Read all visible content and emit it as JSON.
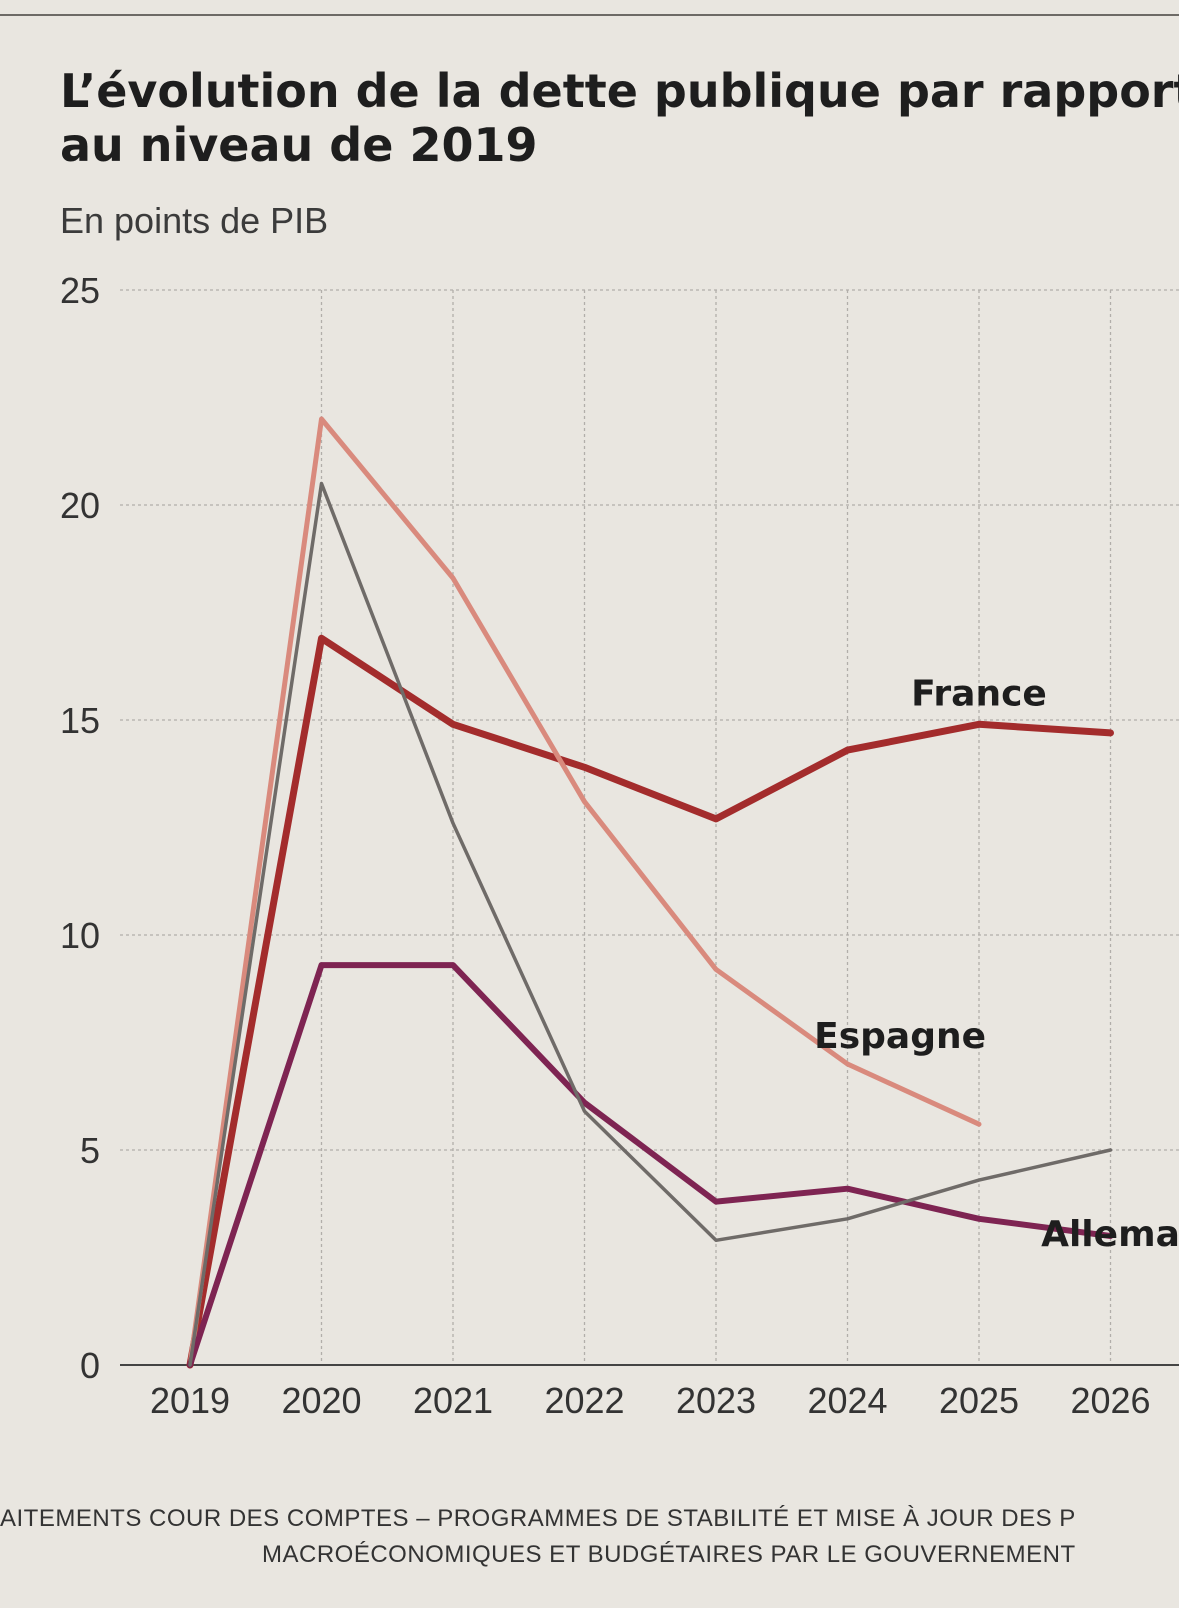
{
  "page": {
    "title_line1": "L’évolution de la dette publique par rapport",
    "title_line2": "au niveau de 2019",
    "subtitle": "En points de PIB",
    "source_line1": "AITEMENTS COUR DES COMPTES – PROGRAMMES DE STABILITÉ ET MISE À JOUR DES P",
    "source_line2": "MACROÉCONOMIQUES ET BUDGÉTAIRES PAR LE GOUVERNEMENT"
  },
  "colors": {
    "france": "#a32c2c",
    "espagne": "#d98a7d",
    "allemagne": "#7e2452",
    "other": "#6f6b68",
    "grid": "#b2aeaa"
  },
  "chart_data": {
    "type": "line",
    "title": "L’évolution de la dette publique par rapport au niveau de 2019",
    "subtitle": "En points de PIB",
    "x": [
      "2019",
      "2020",
      "2021",
      "2022",
      "2023",
      "2024",
      "2025",
      "2026"
    ],
    "ylim": [
      0,
      25
    ],
    "yticks": [
      0,
      5,
      10,
      15,
      20,
      25
    ],
    "grid": true,
    "series": [
      {
        "name": "France",
        "color_key": "france",
        "values": [
          0,
          16.9,
          14.9,
          13.9,
          12.7,
          14.3,
          14.9,
          14.7
        ]
      },
      {
        "name": "Espagne",
        "color_key": "espagne",
        "values": [
          0,
          22.0,
          18.3,
          13.1,
          9.2,
          7.0,
          5.6,
          null
        ]
      },
      {
        "name": "Allema",
        "color_key": "allemagne",
        "values": [
          0,
          9.3,
          9.3,
          6.1,
          3.8,
          4.1,
          3.4,
          3.0
        ]
      },
      {
        "name": "",
        "color_key": "other",
        "values": [
          0,
          20.5,
          12.6,
          5.9,
          2.9,
          3.4,
          4.3,
          5.0
        ]
      }
    ],
    "labels": [
      {
        "text": "France",
        "series": 0,
        "at": 6,
        "dy": 1.9
      },
      {
        "text": "Espagne",
        "series": 1,
        "at": 5.4,
        "dy": 1.6
      },
      {
        "text": "Allema",
        "series": 2,
        "at": 7,
        "dy": -1.0
      }
    ]
  }
}
